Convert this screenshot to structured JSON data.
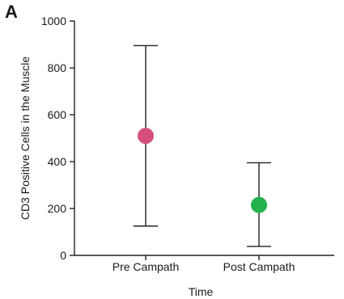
{
  "panel_label": "A",
  "chart_data": {
    "type": "scatter",
    "title": "",
    "xlabel": "Time",
    "ylabel": "CD3 Positive Cells in the Muscle",
    "ylim": [
      0,
      1000
    ],
    "yticks": [
      "0",
      "200",
      "400",
      "600",
      "800",
      "1000"
    ],
    "categories": [
      "Pre Campath",
      "Post Campath"
    ],
    "points": [
      {
        "category": "Pre Campath",
        "value": 510,
        "error_low": 125,
        "error_high": 895,
        "color": "#d4507a"
      },
      {
        "category": "Post Campath",
        "value": 215,
        "error_low": 38,
        "error_high": 395,
        "color": "#22b14c"
      }
    ],
    "grid": false,
    "legend": "none"
  }
}
